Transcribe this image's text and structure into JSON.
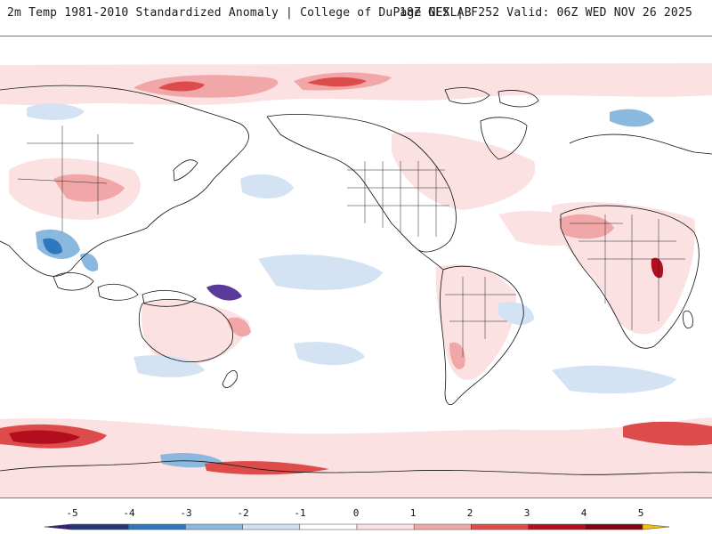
{
  "header": {
    "title": "2m Temp 1981-2010 Standardized Anomaly | College of DuPage NEXLAB",
    "run_info": "18Z GFS | F252 Valid: 06Z WED NOV 26 2025"
  },
  "colorbar": {
    "labels": [
      "-5",
      "-4",
      "-3",
      "-2",
      "-1",
      "0",
      "1",
      "2",
      "3",
      "4",
      "5"
    ],
    "colors": [
      "#3a1f78",
      "#22387a",
      "#2f78bf",
      "#8ab8de",
      "#cfe0f1",
      "#ffffff",
      "#fbe1e1",
      "#f1a7a7",
      "#dd4b4b",
      "#b30e1e",
      "#7f0410",
      "#f5c000"
    ],
    "range": [
      -6,
      6
    ]
  },
  "map": {
    "projection": "cylindrical, centered on the Pacific",
    "palette": {
      "land_border": "#111111",
      "weak_warm": "#fbe1e1",
      "moderate_warm": "#f1a7a7",
      "strong_warm": "#dd4b4b",
      "very_strong_warm": "#b30e1e",
      "weak_cold": "#d4e3f3",
      "moderate_cold": "#8ab8de",
      "strong_cold": "#2f78bf",
      "extreme_cold": "#5b3b9a"
    }
  }
}
